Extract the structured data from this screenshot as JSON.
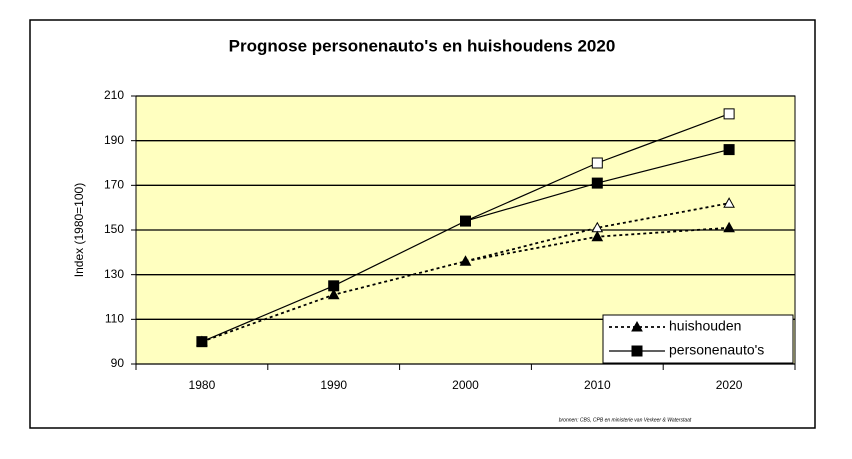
{
  "chart_data": {
    "type": "line",
    "title": "Prognose personenauto's en huishoudens 2020",
    "y_label": "Index (1980=100)",
    "source": "bronnen: CBS, CPB en ministerie van Verkeer & Waterstaat",
    "categories": [
      "1980",
      "1990",
      "2000",
      "2010",
      "2020"
    ],
    "series": [
      {
        "name": "huishouden",
        "color": "#000000",
        "dashed": true,
        "marker": "triangle",
        "values": [
          100,
          121,
          136,
          147,
          151
        ],
        "upper_values": [
          null,
          null,
          136,
          151,
          162
        ]
      },
      {
        "name": "personenauto's",
        "color": "#000000",
        "dashed": false,
        "marker": "square",
        "values": [
          100,
          125,
          154,
          171,
          186
        ],
        "upper_values": [
          null,
          null,
          154,
          180,
          202
        ]
      }
    ],
    "ylim": [
      90,
      210
    ],
    "yticks": [
      90,
      110,
      130,
      150,
      170,
      190,
      210
    ],
    "grid": true,
    "legend": "lower right",
    "plot_background": "#ffffc0"
  }
}
